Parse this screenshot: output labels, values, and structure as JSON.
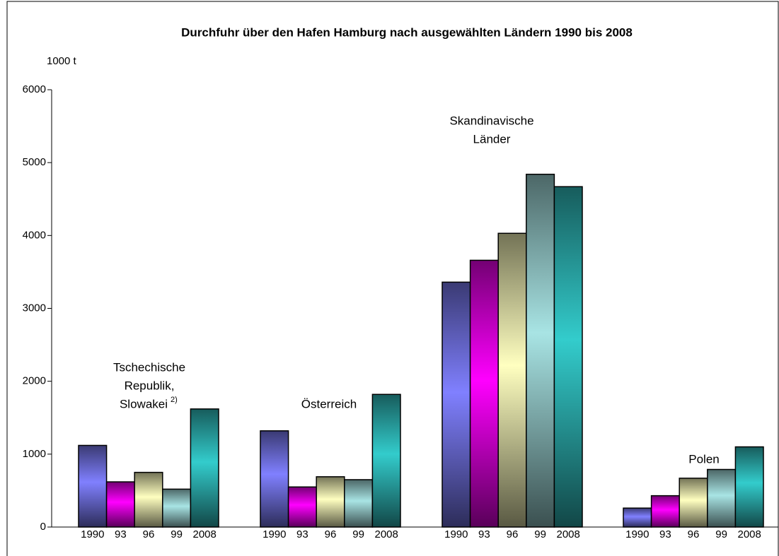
{
  "chart_data": {
    "type": "bar",
    "title": "Durchfuhr über den Hafen Hamburg nach ausgewählten Ländern 1990 bis 2008",
    "y_label": "1000 t",
    "categories": [
      [
        "Tschechische",
        "Republik,",
        "Slowakei"
      ],
      [
        "Österreich"
      ],
      [
        "Skandinavische",
        "Länder"
      ],
      [
        "Polen"
      ]
    ],
    "footnote_mark": "2)",
    "series": [
      {
        "name": "1990",
        "color": "#8080ff",
        "values": [
          1120,
          1320,
          3360,
          260
        ]
      },
      {
        "name": "93",
        "color": "#ff00ff",
        "values": [
          620,
          550,
          3660,
          430
        ]
      },
      {
        "name": "96",
        "color": "#ffffc0",
        "values": [
          750,
          690,
          4030,
          670
        ]
      },
      {
        "name": "99",
        "color": "#a8e4e4",
        "values": [
          520,
          650,
          4840,
          790
        ]
      },
      {
        "name": "2008",
        "color": "#33cccc",
        "values": [
          1620,
          1820,
          4670,
          1100
        ]
      }
    ],
    "ylim": [
      0,
      6000
    ],
    "yticks": [
      0,
      1000,
      2000,
      3000,
      4000,
      5000,
      6000
    ]
  }
}
